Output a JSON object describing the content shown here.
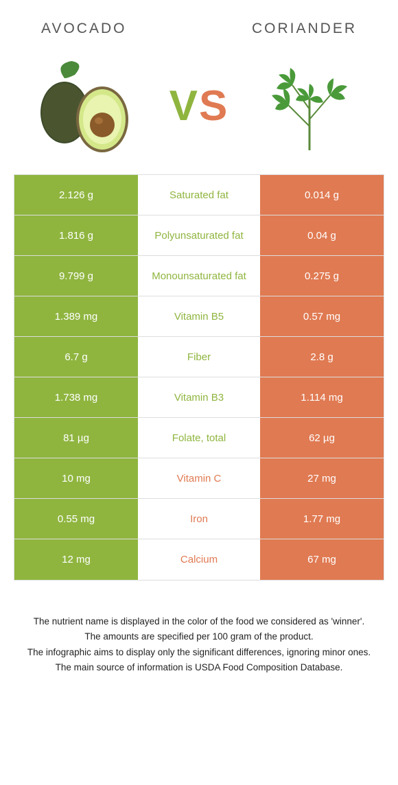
{
  "colors": {
    "left_bg": "#8fb53f",
    "right_bg": "#e07a52",
    "mid_left_color": "#8fb53f",
    "mid_right_color": "#e07a52",
    "cell_text": "#ffffff"
  },
  "header": {
    "left": "Avocado",
    "right": "Coriander"
  },
  "vs": {
    "v": "V",
    "s": "S"
  },
  "rows": [
    {
      "left": "2.126 g",
      "mid": "Saturated fat",
      "right": "0.014 g",
      "winner": "left"
    },
    {
      "left": "1.816 g",
      "mid": "Polyunsaturated fat",
      "right": "0.04 g",
      "winner": "left"
    },
    {
      "left": "9.799 g",
      "mid": "Monounsaturated fat",
      "right": "0.275 g",
      "winner": "left"
    },
    {
      "left": "1.389 mg",
      "mid": "Vitamin B5",
      "right": "0.57 mg",
      "winner": "left"
    },
    {
      "left": "6.7 g",
      "mid": "Fiber",
      "right": "2.8 g",
      "winner": "left"
    },
    {
      "left": "1.738 mg",
      "mid": "Vitamin B3",
      "right": "1.114 mg",
      "winner": "left"
    },
    {
      "left": "81 µg",
      "mid": "Folate, total",
      "right": "62 µg",
      "winner": "left"
    },
    {
      "left": "10 mg",
      "mid": "Vitamin C",
      "right": "27 mg",
      "winner": "right"
    },
    {
      "left": "0.55 mg",
      "mid": "Iron",
      "right": "1.77 mg",
      "winner": "right"
    },
    {
      "left": "12 mg",
      "mid": "Calcium",
      "right": "67 mg",
      "winner": "right"
    }
  ],
  "footer": {
    "line1": "The nutrient name is displayed in the color of the food we considered as 'winner'.",
    "line2": "The amounts are specified per 100 gram of the product.",
    "line3": "The infographic aims to display only the significant differences, ignoring minor ones.",
    "line4": "The main source of information is USDA Food Composition Database."
  }
}
